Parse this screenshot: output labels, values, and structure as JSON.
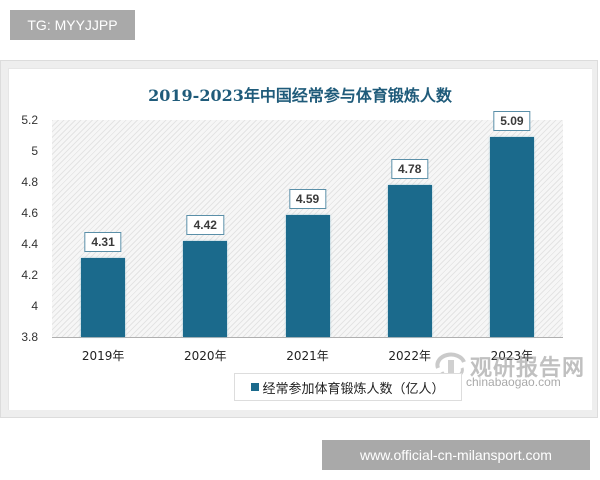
{
  "top_tag": {
    "text": "TG: MYYJJPP"
  },
  "bottom_tag": {
    "text": "www.official-cn-milansport.com"
  },
  "watermark": {
    "cn": "观研报告网",
    "en": "chinabaogao.com"
  },
  "colors": {
    "bar": "#1b6a8c",
    "title": "#1f5b7a",
    "tag_bg": "#a9a9a9"
  },
  "chart_data": {
    "type": "bar",
    "title": "2019-2023年中国经常参与体育锻炼人数",
    "categories": [
      "2019年",
      "2020年",
      "2021年",
      "2022年",
      "2023年"
    ],
    "series": [
      {
        "name": "经常参加体育锻炼人数（亿人）",
        "values": [
          4.31,
          4.42,
          4.59,
          4.78,
          5.09
        ]
      }
    ],
    "value_labels": [
      "4.31",
      "4.42",
      "4.59",
      "4.78",
      "5.09"
    ],
    "xlabel": "",
    "ylabel": "",
    "ylim": [
      3.8,
      5.2
    ],
    "yticks": [
      "5.2",
      "5",
      "4.8",
      "4.6",
      "4.4",
      "4.2",
      "4",
      "3.8"
    ],
    "grid": false,
    "legend_position": "bottom"
  }
}
